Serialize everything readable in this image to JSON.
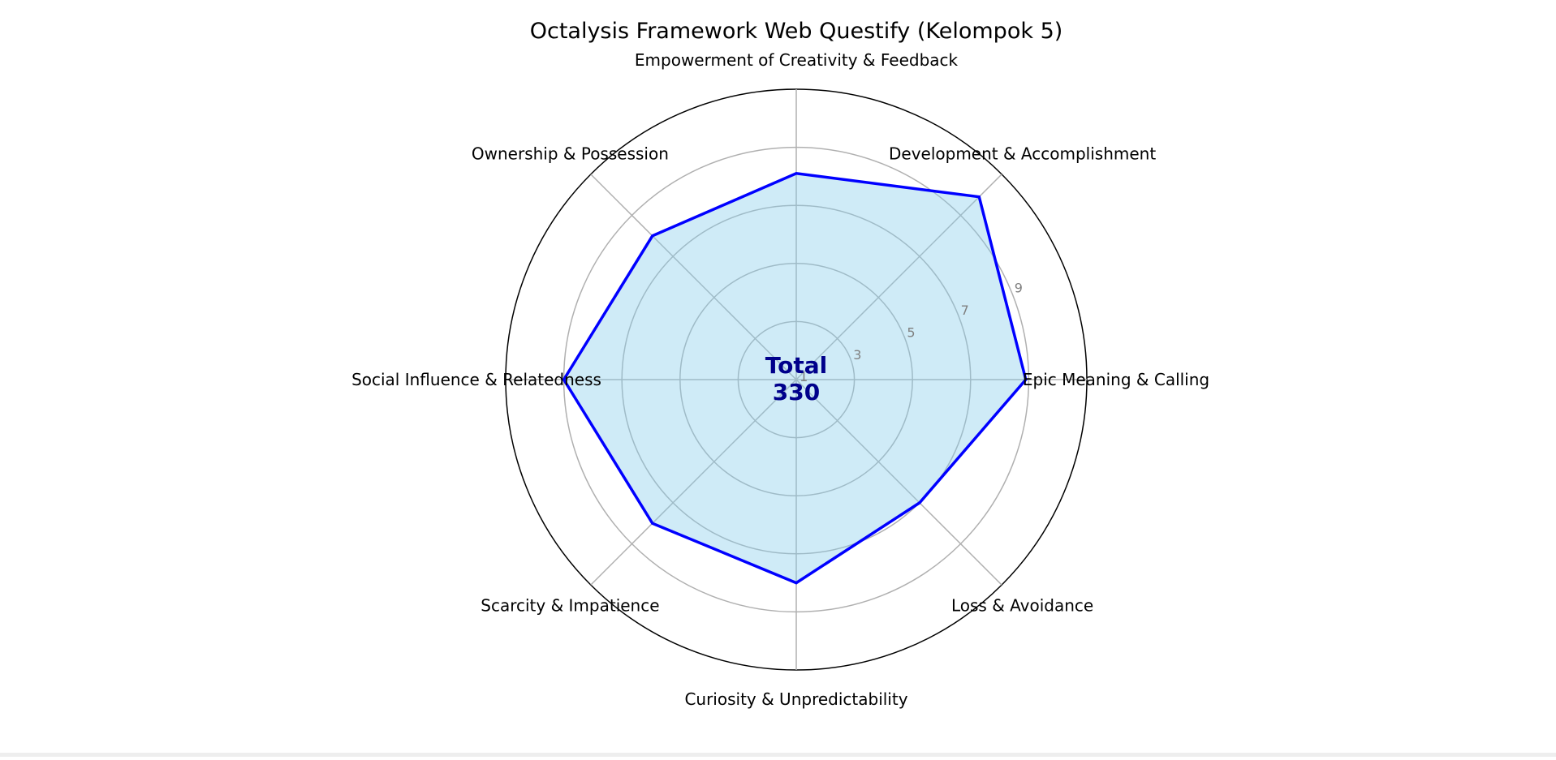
{
  "chart_data": {
    "type": "radar",
    "title": "Octalysis Framework Web Questify (Kelompok 5)",
    "categories": [
      "Epic Meaning & Calling",
      "Development & Accomplishment",
      "Empowerment of Creativity & Feedback",
      "Ownership & Possession",
      "Social Influence & Relatedness",
      "Scarcity & Impatience",
      "Curiosity & Unpredictability",
      "Loss & Avoidance"
    ],
    "series": [
      {
        "values": [
          8.9,
          9.9,
          8.1,
          8.0,
          9.0,
          8.0,
          8.0,
          7.0
        ]
      }
    ],
    "rlim": [
      1,
      11
    ],
    "rticks": [
      1,
      3,
      5,
      7,
      9
    ],
    "rtick_labels": [
      "1",
      "3",
      "5",
      "7",
      "9"
    ],
    "center_label": {
      "line1": "Total",
      "line2": "330"
    },
    "grid": true,
    "colors": {
      "line": "#0000ff",
      "fill": "#87ceeb",
      "grid": "#b0b0b0",
      "spine": "#000000",
      "center_text": "#00008b",
      "tick_text": "#808080"
    }
  }
}
